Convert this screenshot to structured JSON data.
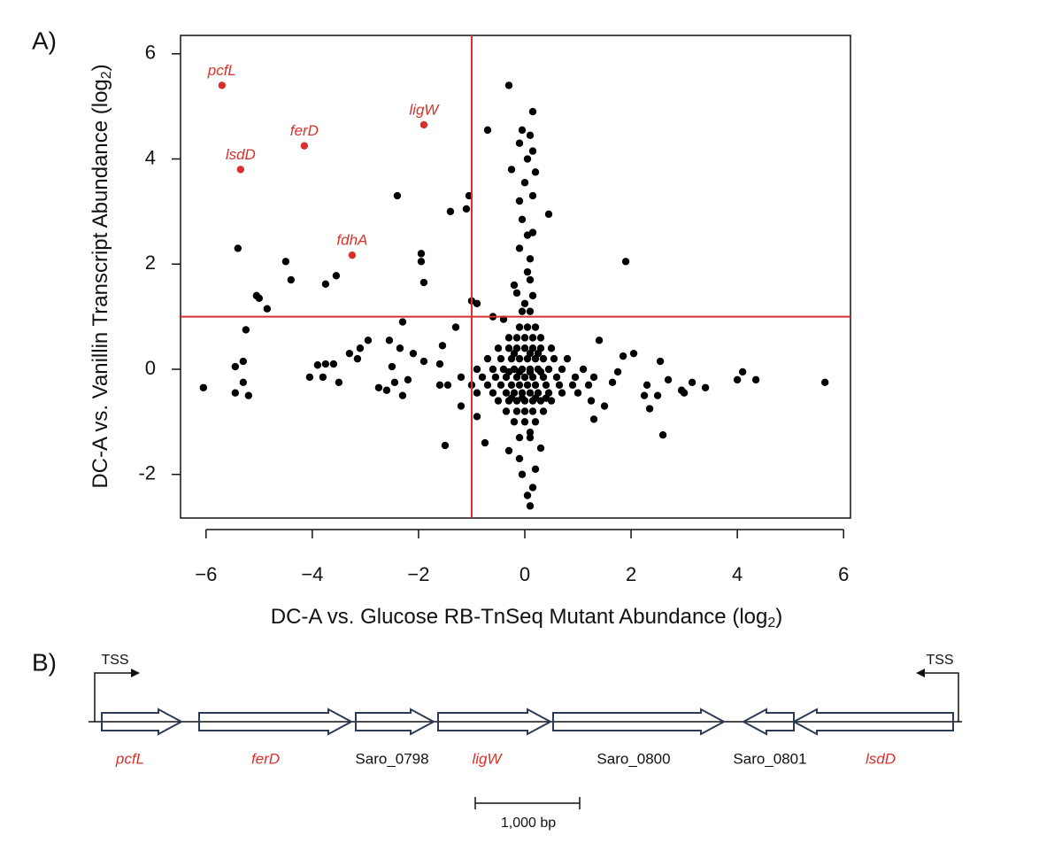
{
  "panel_labels": [
    "A)",
    "B)"
  ],
  "chart_data": {
    "type": "scatter",
    "x_label": {
      "text": "DC-A vs. Glucose RB-TnSeq Mutant Abundance (log",
      "subscript": "2",
      "close": ")"
    },
    "y_label": {
      "text": "DC-A vs. Vanillin Transcript Abundance (log",
      "subscript": "2",
      "close": ")"
    },
    "xlim": [
      -6.48,
      6.13
    ],
    "ylim": [
      -2.83,
      6.35
    ],
    "xticks": [
      {
        "value": -6,
        "label": "−6"
      },
      {
        "value": -4,
        "label": "−4"
      },
      {
        "value": -2,
        "label": "−2"
      },
      0,
      2,
      4,
      6
    ],
    "yticks": [
      -2,
      0,
      2,
      4,
      6
    ],
    "grid": false,
    "reference_lines": {
      "x": -1,
      "y": 1,
      "color": "#d9302b"
    },
    "series": [
      {
        "color": "#000000",
        "x": [
          -0.3,
          0.15,
          -0.7,
          -0.05,
          0.1,
          -0.1,
          0.15,
          0.05,
          -0.25,
          0.2,
          0,
          0.15,
          -0.1,
          0.45,
          -1.4,
          -1.05,
          -2.4,
          -1.1,
          -0.05,
          0.05,
          0.15,
          -0.1,
          0.1,
          1.9,
          -5.4,
          -4.5,
          -4.4,
          -3.75,
          -3.55,
          -1.95,
          -1.95,
          -1.9,
          -5.05,
          -5.0,
          -4.85,
          -1.0,
          -0.9,
          -0.2,
          0.1,
          0.05,
          -0.15,
          0.15,
          -0.6,
          -0.4,
          -1.3,
          -2.3,
          -2.55,
          -2.95,
          -3.1,
          -3.3,
          -5.25,
          -5.3,
          -5.45,
          -3.75,
          -3.6,
          -3.9,
          -3.15,
          -2.1,
          -2.35,
          -1.55,
          -1.6,
          -1.9,
          -2.5,
          -3.8,
          -3.5,
          -4.05,
          -2.75,
          -2.6,
          -2.3,
          -2.2,
          -2.45,
          -5.3,
          -5.45,
          -5.2,
          -6.05,
          -1.45,
          -1.5,
          -0.75,
          -1.2,
          -0.9,
          1.4,
          1.25,
          1.5,
          1.3,
          1.75,
          1.85,
          2.05,
          2.3,
          2.25,
          2.35,
          2.5,
          2.6,
          2.55,
          2.7,
          2.95,
          3.15,
          3.4,
          3.0,
          4.0,
          4.1,
          4.35,
          5.65,
          1.65,
          0.1,
          0.05,
          0.15,
          -0.05,
          0.2,
          -0.1,
          0.3,
          -0.3,
          0.1,
          -0.1,
          0.05,
          0.2,
          -0.3,
          -0.15,
          0,
          0.15,
          0.3,
          -0.5,
          -0.3,
          -0.15,
          0,
          0.15,
          0.3,
          0.5,
          -0.7,
          -0.45,
          -0.25,
          -0.1,
          0.05,
          0.2,
          0.35,
          0.55,
          0.8,
          -0.9,
          -0.6,
          -0.4,
          -0.2,
          -0.05,
          0.1,
          0.25,
          0.45,
          0.7,
          1.1,
          -1.2,
          -0.8,
          -0.55,
          -0.35,
          -0.15,
          0,
          0.15,
          0.35,
          0.6,
          0.95,
          1.3,
          -1.6,
          -1.0,
          -0.7,
          -0.45,
          -0.25,
          -0.1,
          0.05,
          0.2,
          0.4,
          0.65,
          0.9,
          1.2,
          -0.9,
          -0.6,
          -0.35,
          -0.2,
          -0.05,
          0.1,
          0.25,
          0.45,
          0.7,
          1.0,
          -0.5,
          -0.3,
          -0.15,
          0,
          0.15,
          0.3,
          0.5,
          -0.35,
          -0.15,
          0,
          0.15,
          0.35,
          -0.2,
          0,
          0.2,
          -0.1,
          0.1,
          -0.3,
          -0.1,
          0.1,
          0.3,
          -0.25,
          -0.05,
          0.2,
          0.4,
          -0.2,
          0.1,
          0.25,
          -0.05,
          0.1,
          0
        ],
        "values": [
          5.4,
          4.9,
          4.55,
          4.55,
          4.45,
          4.3,
          4.15,
          4.0,
          3.8,
          3.75,
          3.55,
          3.3,
          3.2,
          2.95,
          3.0,
          3.3,
          3.3,
          3.05,
          2.85,
          2.55,
          2.6,
          2.3,
          2.1,
          2.05,
          2.3,
          2.05,
          1.7,
          1.62,
          1.78,
          2.2,
          2.05,
          1.65,
          1.4,
          1.35,
          1.15,
          1.3,
          1.25,
          1.6,
          1.7,
          1.85,
          1.45,
          1.4,
          1.0,
          0.95,
          0.8,
          0.9,
          0.55,
          0.55,
          0.4,
          0.3,
          0.75,
          0.15,
          0.05,
          0.1,
          0.1,
          0.08,
          0.2,
          0.3,
          0.4,
          0.45,
          0.1,
          0.15,
          0.05,
          -0.15,
          -0.25,
          -0.15,
          -0.35,
          -0.4,
          -0.5,
          -0.2,
          -0.25,
          -0.25,
          -0.45,
          -0.5,
          -0.35,
          -0.3,
          -1.45,
          -1.4,
          -0.7,
          -0.9,
          0.55,
          -0.6,
          -0.7,
          -0.95,
          -0.05,
          0.25,
          0.3,
          -0.3,
          -0.5,
          -0.75,
          -0.5,
          -1.25,
          0.15,
          -0.2,
          -0.4,
          -0.25,
          -0.35,
          -0.45,
          -0.2,
          -0.05,
          -0.2,
          -0.25,
          -0.25,
          -2.6,
          -2.4,
          -2.25,
          -2.0,
          -1.9,
          -1.7,
          -1.5,
          -1.55,
          -1.2,
          0.8,
          0.8,
          0.8,
          0.6,
          0.6,
          0.6,
          0.6,
          0.6,
          0.4,
          0.4,
          0.4,
          0.4,
          0.4,
          0.4,
          0.4,
          0.2,
          0.2,
          0.2,
          0.2,
          0.2,
          0.2,
          0.2,
          0.2,
          0.2,
          0,
          0,
          0,
          0,
          0,
          0,
          0,
          0,
          0,
          0,
          -0.15,
          -0.15,
          -0.15,
          -0.15,
          -0.15,
          -0.15,
          -0.15,
          -0.15,
          -0.15,
          -0.15,
          -0.15,
          -0.3,
          -0.3,
          -0.3,
          -0.3,
          -0.3,
          -0.3,
          -0.3,
          -0.3,
          -0.3,
          -0.3,
          -0.3,
          -0.3,
          -0.45,
          -0.45,
          -0.45,
          -0.45,
          -0.45,
          -0.45,
          -0.45,
          -0.45,
          -0.45,
          -0.45,
          -0.6,
          -0.6,
          -0.6,
          -0.6,
          -0.6,
          -0.6,
          -0.6,
          -0.8,
          -0.8,
          -0.8,
          -0.8,
          -0.8,
          -1.0,
          -1.0,
          -1.0,
          -1.3,
          -1.3,
          -0.05,
          -0.05,
          -0.05,
          -0.05,
          -0.55,
          -0.55,
          -0.55,
          -0.55,
          0.3,
          0.3,
          0.3,
          1.1,
          1.1,
          1.25
        ]
      },
      {
        "color": "#d9302b",
        "x": [
          -5.7,
          -5.35,
          -4.15,
          -1.9,
          -3.25
        ],
        "values": [
          5.4,
          3.8,
          4.25,
          4.65,
          2.17
        ],
        "point_labels": [
          "pcfL",
          "lsdD",
          "ferD",
          "ligW",
          "fdhA"
        ]
      }
    ]
  },
  "gene_map": {
    "genes": [
      {
        "label": "pcfL",
        "color": "#d9302b",
        "italic": true
      },
      {
        "label": "ferD",
        "color": "#d9302b",
        "italic": true
      },
      {
        "label": "Saro_0798",
        "color": "#111111",
        "italic": false
      },
      {
        "label": "ligW",
        "color": "#d9302b",
        "italic": true
      },
      {
        "label": "Saro_0800",
        "color": "#111111",
        "italic": false
      },
      {
        "label": "Saro_0801",
        "color": "#111111",
        "italic": false
      },
      {
        "label": "lsdD",
        "color": "#d9302b",
        "italic": true
      }
    ],
    "tss_labels": [
      "TSS",
      "TSS"
    ],
    "scale_bar": "1,000 bp"
  }
}
